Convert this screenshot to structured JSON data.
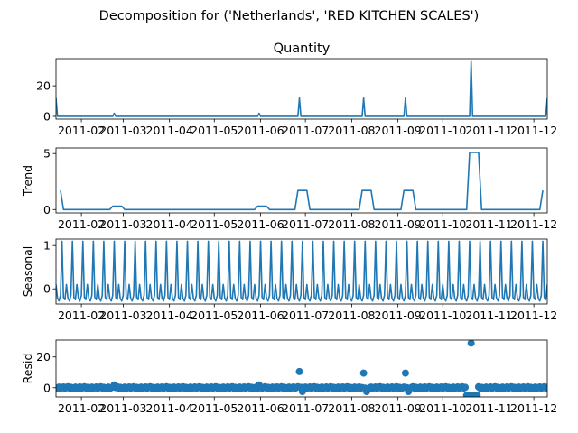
{
  "figure": {
    "suptitle": "Decomposition for ('Netherlands', 'RED KITCHEN SCALES')",
    "series_color": "#1f77b4"
  },
  "chart_data": [
    {
      "type": "line",
      "title": "Quantity",
      "ylabel": "",
      "xlim": [
        "2011-01-15",
        "2011-12-10"
      ],
      "ylim": [
        -1.8,
        37.8
      ],
      "y_ticks": [
        0,
        20
      ],
      "x_ticks": [
        "2011-02",
        "2011-03",
        "2011-04",
        "2011-05",
        "2011-06",
        "2011-07",
        "2011-08",
        "2011-09",
        "2011-10",
        "2011-11",
        "2011-12"
      ],
      "baseline": 0,
      "baseline_range": [
        "2011-01-15",
        "2011-12-10"
      ],
      "spikes": [
        {
          "date": "2011-01-15",
          "value": 12
        },
        {
          "date": "2011-02-23",
          "value": 2
        },
        {
          "date": "2011-05-31",
          "value": 2
        },
        {
          "date": "2011-06-27",
          "value": 12
        },
        {
          "date": "2011-08-09",
          "value": 12
        },
        {
          "date": "2011-09-06",
          "value": 12
        },
        {
          "date": "2011-10-20",
          "value": 36
        },
        {
          "date": "2011-12-10",
          "value": 12
        }
      ]
    },
    {
      "type": "line",
      "title": "",
      "ylabel": "Trend",
      "xlim": [
        "2011-01-15",
        "2011-12-10"
      ],
      "ylim": [
        -0.3,
        5.5
      ],
      "y_ticks": [
        0,
        5
      ],
      "x_ticks": [
        "2011-02",
        "2011-03",
        "2011-04",
        "2011-05",
        "2011-06",
        "2011-07",
        "2011-08",
        "2011-09",
        "2011-10",
        "2011-11",
        "2011-12"
      ],
      "points": [
        [
          "2011-01-18",
          1.7
        ],
        [
          "2011-01-20",
          0
        ],
        [
          "2011-02-20",
          0
        ],
        [
          "2011-02-22",
          0.3
        ],
        [
          "2011-02-28",
          0.3
        ],
        [
          "2011-03-02",
          0
        ],
        [
          "2011-05-28",
          0
        ],
        [
          "2011-05-30",
          0.3
        ],
        [
          "2011-06-05",
          0.3
        ],
        [
          "2011-06-07",
          0
        ],
        [
          "2011-06-24",
          0
        ],
        [
          "2011-06-26",
          1.7
        ],
        [
          "2011-07-02",
          1.7
        ],
        [
          "2011-07-04",
          0
        ],
        [
          "2011-08-06",
          0
        ],
        [
          "2011-08-08",
          1.7
        ],
        [
          "2011-08-14",
          1.7
        ],
        [
          "2011-08-16",
          0
        ],
        [
          "2011-09-03",
          0
        ],
        [
          "2011-09-05",
          1.7
        ],
        [
          "2011-09-11",
          1.7
        ],
        [
          "2011-09-13",
          0
        ],
        [
          "2011-10-17",
          0
        ],
        [
          "2011-10-19",
          5.1
        ],
        [
          "2011-10-25",
          5.1
        ],
        [
          "2011-10-27",
          0
        ],
        [
          "2011-12-05",
          0
        ],
        [
          "2011-12-07",
          1.7
        ]
      ]
    },
    {
      "type": "line",
      "title": "",
      "ylabel": "Seasonal",
      "xlim": [
        "2011-01-15",
        "2011-12-10"
      ],
      "ylim": [
        -0.35,
        1.15
      ],
      "y_ticks": [
        0,
        1
      ],
      "x_ticks": [
        "2011-02",
        "2011-03",
        "2011-04",
        "2011-05",
        "2011-06",
        "2011-07",
        "2011-08",
        "2011-09",
        "2011-10",
        "2011-11",
        "2011-12"
      ],
      "period_days": 7,
      "first_peak": "2011-01-19",
      "weekly_pattern": [
        1.1,
        -0.2,
        -0.25,
        0.1,
        -0.22,
        -0.28,
        -0.15
      ]
    },
    {
      "type": "scatter",
      "title": "",
      "ylabel": "Resid",
      "xlim": [
        "2011-01-15",
        "2011-12-10"
      ],
      "ylim": [
        -6,
        31
      ],
      "y_ticks": [
        0,
        20
      ],
      "x_ticks": [
        "2011-02",
        "2011-03",
        "2011-04",
        "2011-05",
        "2011-06",
        "2011-07",
        "2011-08",
        "2011-09",
        "2011-10",
        "2011-11",
        "2011-12"
      ],
      "baseline_points_daily": true,
      "outliers": [
        {
          "date": "2011-02-23",
          "value": 1.8
        },
        {
          "date": "2011-05-31",
          "value": 1.8
        },
        {
          "date": "2011-06-27",
          "value": 10.5
        },
        {
          "date": "2011-08-09",
          "value": 9.5
        },
        {
          "date": "2011-09-06",
          "value": 9.5
        },
        {
          "date": "2011-10-20",
          "value": 29
        },
        {
          "date": "2011-10-17",
          "value": -5
        },
        {
          "date": "2011-10-18",
          "value": -5
        },
        {
          "date": "2011-10-19",
          "value": -5
        },
        {
          "date": "2011-10-21",
          "value": -5
        },
        {
          "date": "2011-10-22",
          "value": -5
        },
        {
          "date": "2011-10-23",
          "value": -5
        },
        {
          "date": "2011-10-24",
          "value": -5
        },
        {
          "date": "2011-06-29",
          "value": -2.5
        },
        {
          "date": "2011-08-11",
          "value": -2.5
        },
        {
          "date": "2011-09-08",
          "value": -2.5
        }
      ]
    }
  ]
}
